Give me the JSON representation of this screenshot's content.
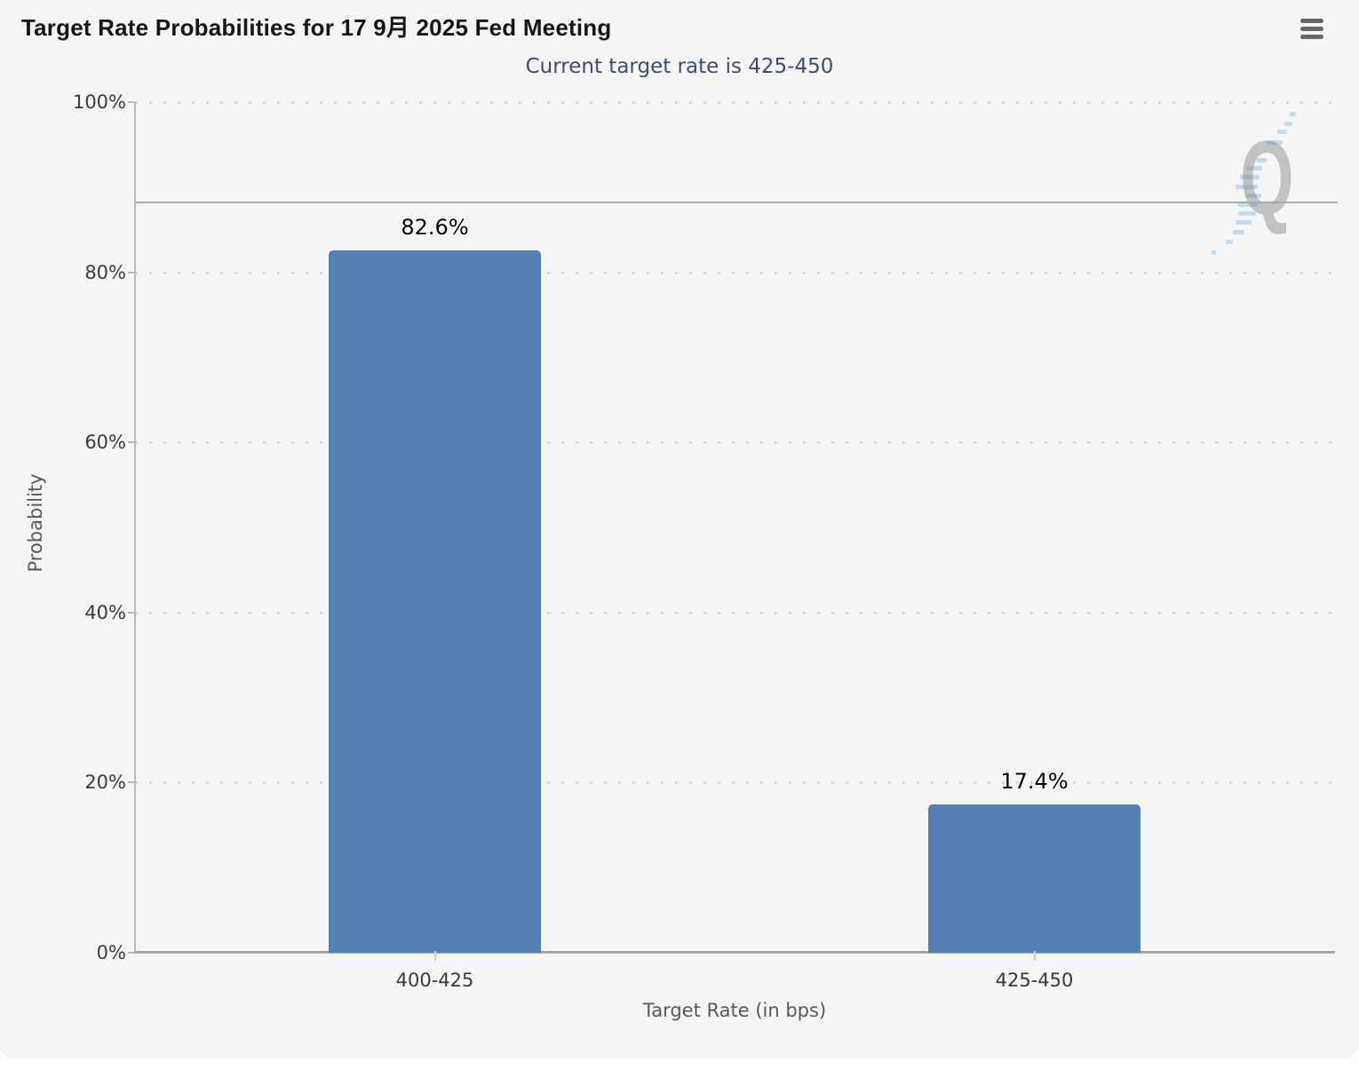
{
  "chart_data": {
    "type": "bar",
    "title": "Target Rate Probabilities for 17 9月 2025 Fed Meeting",
    "subtitle": "Current target rate is 425-450",
    "categories": [
      "400-425",
      "425-450"
    ],
    "values": [
      82.6,
      17.4
    ],
    "value_labels": [
      "82.6%",
      "17.4%"
    ],
    "xlabel": "Target Rate (in bps)",
    "ylabel": "Probability",
    "ylim": [
      0,
      100
    ],
    "yticks": [
      0,
      20,
      40,
      60,
      80,
      100
    ],
    "ytick_labels": [
      "0%",
      "20%",
      "40%",
      "60%",
      "80%",
      "100%"
    ],
    "reference_line_value": 88.2,
    "grid": "dotted horizontal gridlines at 20% steps",
    "legend": "none",
    "watermark_letter": "Q"
  },
  "colors": {
    "bar": "#5580b4",
    "card_background": "#f5f5f6",
    "subtitle_text": "#3e4e6e",
    "reference_line": "#ababab"
  },
  "header": {
    "menu_icon": "hamburger-icon"
  }
}
